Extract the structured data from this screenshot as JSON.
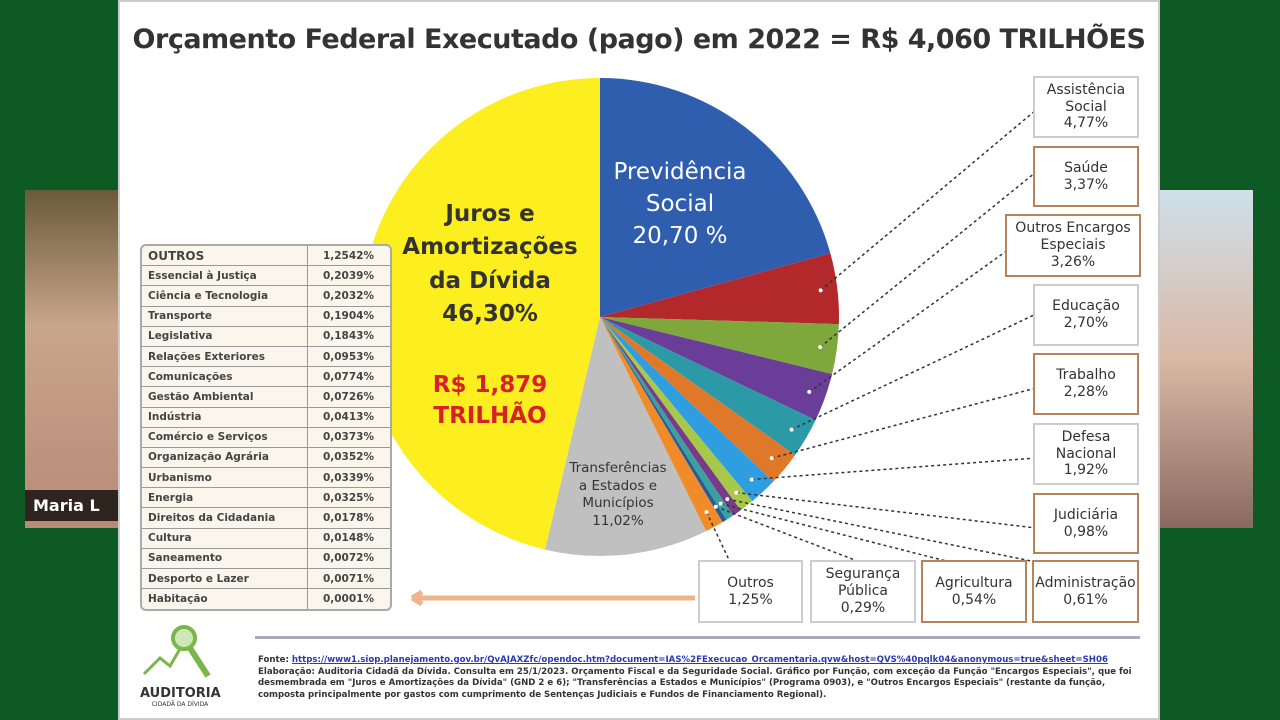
{
  "title": "Orçamento Federal Executado (pago) em 2022 = R$ 4,060 TRILHÕES",
  "participant_name": "Maria L",
  "chart_data": {
    "type": "pie",
    "title": "Orçamento Federal Executado (pago) em 2022 = R$ 4,060 TRILHÕES",
    "slices": [
      {
        "label": "Previdência Social",
        "value": 20.7,
        "display": "20,70 %",
        "color": "#2f5eae"
      },
      {
        "label": "Assistência Social",
        "value": 4.77,
        "display": "4,77%",
        "color": "#b3282b"
      },
      {
        "label": "Saúde",
        "value": 3.37,
        "display": "3,37%",
        "color": "#7fa83c"
      },
      {
        "label": "Outros Encargos Especiais",
        "value": 3.26,
        "display": "3,26%",
        "color": "#6a3d98"
      },
      {
        "label": "Educação",
        "value": 2.7,
        "display": "2,70%",
        "color": "#2b9aa6"
      },
      {
        "label": "Trabalho",
        "value": 2.28,
        "display": "2,28%",
        "color": "#e0782a"
      },
      {
        "label": "Defesa Nacional",
        "value": 1.92,
        "display": "1,92%",
        "color": "#2f9ee0"
      },
      {
        "label": "Judiciária",
        "value": 0.98,
        "display": "0,98%",
        "color": "#a8c84a"
      },
      {
        "label": "Administração",
        "value": 0.61,
        "display": "0,61%",
        "color": "#7a3a8a"
      },
      {
        "label": "Agricultura",
        "value": 0.54,
        "display": "0,54%",
        "color": "#3aa0a0"
      },
      {
        "label": "Segurança Pública",
        "value": 0.29,
        "display": "0,29%",
        "color": "#2a5a9a"
      },
      {
        "label": "Outros",
        "value": 1.25,
        "display": "1,25%",
        "color": "#f08c28"
      },
      {
        "label": "Transferências a Estados e Municípios",
        "value": 11.02,
        "display": "11,02%",
        "color": "#c0c0c0"
      },
      {
        "label": "Juros e Amortizações da Dívida",
        "value": 46.3,
        "display": "46,30%",
        "color": "#fcee1f"
      }
    ]
  },
  "pie_labels": {
    "previdencia": [
      "Previdência",
      "Social",
      "20,70 %"
    ],
    "juros": [
      "Juros e",
      "Amortizações",
      "da Dívida",
      "46,30%"
    ],
    "juros_amount": [
      "R$ 1,879",
      "TRILHÃO"
    ],
    "transferencias": [
      "Transferências",
      "a Estados e",
      "Municípios",
      "11,02%"
    ]
  },
  "right_boxes": [
    {
      "lines": [
        "Assistência",
        "Social",
        "4,77%"
      ]
    },
    {
      "lines": [
        "Saúde",
        "3,37%"
      ]
    },
    {
      "lines": [
        "Outros Encargos",
        "Especiais",
        "3,26%"
      ]
    },
    {
      "lines": [
        "Educação",
        "2,70%"
      ]
    },
    {
      "lines": [
        "Trabalho",
        "2,28%"
      ]
    },
    {
      "lines": [
        "Defesa",
        "Nacional",
        "1,92%"
      ]
    },
    {
      "lines": [
        "Judiciária",
        "0,98%"
      ]
    }
  ],
  "bottom_boxes": [
    {
      "lines": [
        "Outros",
        "1,25%"
      ]
    },
    {
      "lines": [
        "Segurança",
        "Pública",
        "0,29%"
      ]
    },
    {
      "lines": [
        "Agricultura",
        "0,54%"
      ]
    },
    {
      "lines": [
        "Administração",
        "0,61%"
      ]
    }
  ],
  "outros_table": [
    {
      "name": "OUTROS",
      "value": "1,2542%"
    },
    {
      "name": "Essencial à Justiça",
      "value": "0,2039%"
    },
    {
      "name": "Ciência e Tecnologia",
      "value": "0,2032%"
    },
    {
      "name": "Transporte",
      "value": "0,1904%"
    },
    {
      "name": "Legislativa",
      "value": "0,1843%"
    },
    {
      "name": "Relações Exteriores",
      "value": "0,0953%"
    },
    {
      "name": "Comunicações",
      "value": "0,0774%"
    },
    {
      "name": "Gestão Ambiental",
      "value": "0,0726%"
    },
    {
      "name": "Indústria",
      "value": "0,0413%"
    },
    {
      "name": "Comércio e Serviços",
      "value": "0,0373%"
    },
    {
      "name": "Organização Agrária",
      "value": "0,0352%"
    },
    {
      "name": "Urbanismo",
      "value": "0,0339%"
    },
    {
      "name": "Energia",
      "value": "0,0325%"
    },
    {
      "name": "Direitos da Cidadania",
      "value": "0,0178%"
    },
    {
      "name": "Cultura",
      "value": "0,0148%"
    },
    {
      "name": "Saneamento",
      "value": "0,0072%"
    },
    {
      "name": "Desporto e Lazer",
      "value": "0,0071%"
    },
    {
      "name": "Habitação",
      "value": "0,0001%"
    }
  ],
  "footer": {
    "source_label": "Fonte:",
    "source_url": "https://www1.siop.planejamento.gov.br/QvAJAXZfc/opendoc.htm?document=IAS%2FExecucao_Orcamentaria.qvw&host=QVS%40pqlk04&anonymous=true&sheet=SH06",
    "note": "Elaboração: Auditoria Cidadã da Dívida. Consulta em 25/1/2023. Orçamento Fiscal e da Seguridade Social. Gráfico por Função, com exceção da Função \"Encargos Especiais\", que foi desmembrada em \"Juros e Amortizações da Dívida\" (GND 2 e 6); \"Transferências a Estados e Municípios\" (Programa 0903), e \"Outros Encargos Especiais\" (restante da função, composta principalmente por gastos com cumprimento de Sentenças Judiciais e Fundos de Financiamento Regional)."
  },
  "logo": {
    "name": "AUDITORIA",
    "subtitle": "CIDADÃ DA DÍVIDA"
  }
}
